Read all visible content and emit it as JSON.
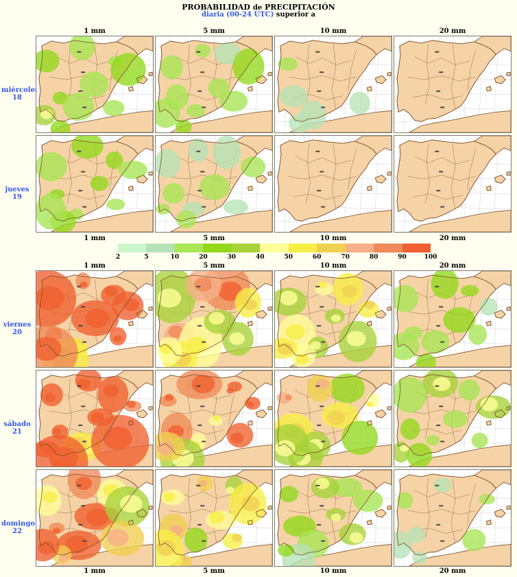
{
  "title": {
    "main": "PROBABILIDAD",
    "de": "de",
    "sub_main": "PRECIPITACIÓN",
    "line2_blue": "diaria (00-24 UTC)",
    "line2_rest": "superior a"
  },
  "thresholds": [
    "1 mm",
    "5 mm",
    "10 mm",
    "20 mm"
  ],
  "days": [
    {
      "name": "miércoles",
      "num": "18"
    },
    {
      "name": "jueves",
      "num": "19"
    },
    {
      "name": "viernes",
      "num": "20"
    },
    {
      "name": "sábado",
      "num": "21"
    },
    {
      "name": "domingo",
      "num": "22"
    }
  ],
  "legend": {
    "ticks": [
      "2",
      "5",
      "10",
      "20",
      "30",
      "40",
      "50",
      "60",
      "70",
      "80",
      "90",
      "100"
    ],
    "colors": [
      "#ccf6cc",
      "#b6e3b6",
      "#a7e655",
      "#92d81c",
      "#a6d23a",
      "#ffff99",
      "#f7ee45",
      "#f0d050",
      "#f6b088",
      "#f08a5a",
      "#f06030"
    ]
  },
  "map_colors": {
    "land": "#f6d3a6",
    "sea": "#ffffff",
    "border": "#7a4f2a"
  },
  "probability_intensity": [
    [
      0.3,
      0.22,
      0.14,
      0.06
    ],
    [
      0.32,
      0.18,
      0.08,
      0.02
    ],
    [
      0.92,
      0.7,
      0.45,
      0.22
    ],
    [
      0.95,
      0.72,
      0.52,
      0.3
    ],
    [
      0.7,
      0.52,
      0.3,
      0.14
    ]
  ]
}
